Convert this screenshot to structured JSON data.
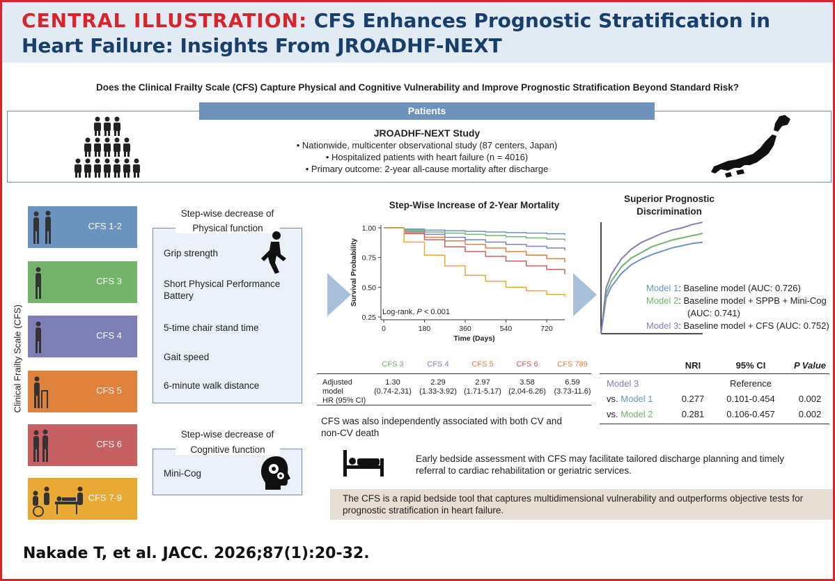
{
  "header": {
    "label": "CENTRAL ILLUSTRATION:",
    "title_line1": "CFS Enhances Prognostic Stratification in",
    "title_line2": "Heart Failure: Insights From JROADHF-NEXT"
  },
  "question": "Does the Clinical Frailty Scale (CFS) Capture Physical and Cognitive Vulnerability and Improve Prognostic Stratification Beyond Standard Risk?",
  "patients": {
    "bar_label": "Patients",
    "study_title": "JROADHF-NEXT Study",
    "bullets": [
      "• Nationwide, multicenter observational study (87 centers, Japan)",
      "• Hospitalized patients with heart failure (n = 4016)",
      "• Primary outcome: 2-year all-cause mortality after discharge"
    ]
  },
  "cfs_axis_label": "Clinical Frailty Scale (CFS)",
  "cfs_levels": [
    {
      "label": "CFS 1-2",
      "color": "#6a93c0"
    },
    {
      "label": "CFS 3",
      "color": "#73b36a"
    },
    {
      "label": "CFS 4",
      "color": "#7f7fb8"
    },
    {
      "label": "CFS 5",
      "color": "#e0813e"
    },
    {
      "label": "CFS 6",
      "color": "#c76062"
    },
    {
      "label": "CFS 7-9",
      "color": "#e8a935"
    }
  ],
  "physical": {
    "caption_line1": "Step-wise decrease of",
    "caption_line2": "Physical function",
    "items": [
      "Grip strength",
      "Short Physical Performance",
      "Battery",
      "5-time chair stand time",
      "Gait speed",
      "6-minute walk distance"
    ]
  },
  "cognitive": {
    "caption_line1": "Step-wise decrease of",
    "caption_line2": "Cognitive function",
    "items": [
      "Mini-Cog"
    ]
  },
  "km": {
    "title": "Step-Wise Increase of 2-Year Mortality",
    "logrank_prefix": "Log-rank, ",
    "logrank_p": "P",
    "logrank_suffix": " < 0.001"
  },
  "chart_data": [
    {
      "type": "line",
      "title": "Step-Wise Increase of 2-Year Mortality",
      "xlabel": "Time (Days)",
      "ylabel": "Survival Probability",
      "xlim": [
        0,
        800
      ],
      "ylim": [
        0.25,
        1.0
      ],
      "xticks": [
        0,
        180,
        360,
        540,
        720
      ],
      "yticks": [
        0.25,
        0.5,
        0.75,
        1.0
      ],
      "ytick_labels": [
        "0.25",
        "0.50",
        "0.75",
        "1.00"
      ],
      "x": [
        0,
        90,
        180,
        270,
        360,
        450,
        540,
        630,
        720,
        800
      ],
      "series": [
        {
          "name": "CFS 1-2",
          "color": "#6a93c0",
          "values": [
            1.0,
            0.99,
            0.98,
            0.975,
            0.97,
            0.965,
            0.96,
            0.955,
            0.95,
            0.94
          ]
        },
        {
          "name": "CFS 3",
          "color": "#73b36a",
          "values": [
            1.0,
            0.98,
            0.965,
            0.955,
            0.945,
            0.935,
            0.925,
            0.915,
            0.905,
            0.89
          ]
        },
        {
          "name": "CFS 4",
          "color": "#7f7fb8",
          "values": [
            1.0,
            0.97,
            0.945,
            0.92,
            0.9,
            0.88,
            0.86,
            0.845,
            0.83,
            0.81
          ]
        },
        {
          "name": "CFS 5",
          "color": "#e0813e",
          "values": [
            1.0,
            0.96,
            0.92,
            0.89,
            0.86,
            0.83,
            0.8,
            0.77,
            0.74,
            0.71
          ]
        },
        {
          "name": "CFS 6",
          "color": "#c76062",
          "values": [
            1.0,
            0.95,
            0.9,
            0.84,
            0.8,
            0.76,
            0.72,
            0.68,
            0.65,
            0.61
          ]
        },
        {
          "name": "CFS 7-9",
          "color": "#e8a935",
          "values": [
            1.0,
            0.88,
            0.77,
            0.68,
            0.6,
            0.55,
            0.5,
            0.47,
            0.44,
            0.42
          ]
        }
      ]
    },
    {
      "type": "line",
      "title": "Superior Prognostic Discrimination",
      "xlabel": "",
      "ylabel": "",
      "xlim": [
        0,
        1
      ],
      "ylim": [
        0,
        1
      ],
      "x": [
        0,
        0.05,
        0.1,
        0.2,
        0.3,
        0.4,
        0.5,
        0.6,
        0.7,
        0.8,
        0.9,
        1.0
      ],
      "series": [
        {
          "name": "Model 1",
          "color": "#6a93c0",
          "values": [
            0,
            0.32,
            0.42,
            0.54,
            0.62,
            0.67,
            0.71,
            0.74,
            0.77,
            0.79,
            0.81,
            0.82
          ]
        },
        {
          "name": "Model 2",
          "color": "#73b36a",
          "values": [
            0,
            0.36,
            0.47,
            0.6,
            0.68,
            0.73,
            0.78,
            0.81,
            0.84,
            0.86,
            0.88,
            0.9
          ]
        },
        {
          "name": "Model 3",
          "color": "#7f7fb8",
          "values": [
            0,
            0.41,
            0.53,
            0.67,
            0.76,
            0.82,
            0.86,
            0.9,
            0.93,
            0.95,
            0.98,
            1.0
          ]
        }
      ]
    }
  ],
  "roc": {
    "title_line1": "Superior Prognostic",
    "title_line2": "Discrimination",
    "m1_name": "Model 1",
    "m1_desc": ": Baseline model (AUC: 0.726)",
    "m2_name": "Model 2",
    "m2_desc": ": Baseline model + SPPB + Mini-Cog",
    "m2_auc": "(AUC: 0.741)",
    "m3_name": "Model 3",
    "m3_desc": ": Baseline model + CFS (AUC: 0.752)"
  },
  "hr_table": {
    "row_label": [
      "Adjusted",
      "model",
      "HR (95% CI)"
    ],
    "columns": [
      {
        "name": "CFS 3",
        "color": "#73b36a",
        "hr": "1.30",
        "ci": "(0.74-2.31)"
      },
      {
        "name": "CFS 4",
        "color": "#7f7fb8",
        "hr": "2.29",
        "ci": "(1.33-3.92)"
      },
      {
        "name": "CFS 5",
        "color": "#e0813e",
        "hr": "2.97",
        "ci": "(1.71-5.17)"
      },
      {
        "name": "CFS 6",
        "color": "#c76062",
        "hr": "3.58",
        "ci": "(2.04-6.26)"
      },
      {
        "name": "CFS 789",
        "color": "#e0813e",
        "hr": "6.59",
        "ci": "(3.73-11.6)"
      }
    ]
  },
  "cv_note": "CFS was also independently associated with both CV and non-CV death",
  "nri_table": {
    "headers": [
      "NRI",
      "95% CI",
      "P Value"
    ],
    "reference_model": "Model 3",
    "reference_label": "Reference",
    "rows": [
      {
        "prefix": "vs. ",
        "model": "Model 1",
        "color": "#6a93c0",
        "nri": "0.277",
        "ci": "0.101-0.454",
        "p": "0.002"
      },
      {
        "prefix": "vs. ",
        "model": "Model 2",
        "color": "#73b36a",
        "nri": "0.281",
        "ci": "0.106-0.457",
        "p": "0.002"
      }
    ]
  },
  "bedside_text": "Early bedside assessment with CFS may facilitate tailored discharge planning and timely referral to cardiac rehabilitation or geriatric services.",
  "conclusion": "The CFS is a rapid bedside tool that captures multidimensional vulnerability and outperforms objective tests for prognostic stratification in heart failure.",
  "citation": "Nakade T, et al. JACC. 2026;87(1):20-32."
}
